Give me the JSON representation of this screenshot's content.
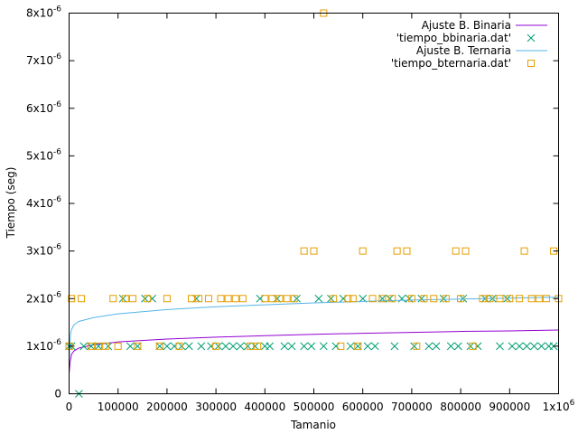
{
  "chart_data": {
    "type": "scatter",
    "xlabel": "Tamanio",
    "ylabel": "Tiempo (seg)",
    "xlim": [
      0,
      1000000
    ],
    "ylim": [
      0,
      8e-06
    ],
    "grid": false,
    "legend_position": "top-right",
    "x_ticks": [
      {
        "value": 0,
        "label": "0"
      },
      {
        "value": 100000,
        "label": "100000"
      },
      {
        "value": 200000,
        "label": "200000"
      },
      {
        "value": 300000,
        "label": "300000"
      },
      {
        "value": 400000,
        "label": "400000"
      },
      {
        "value": 500000,
        "label": "500000"
      },
      {
        "value": 600000,
        "label": "600000"
      },
      {
        "value": 700000,
        "label": "700000"
      },
      {
        "value": 800000,
        "label": "800000"
      },
      {
        "value": 900000,
        "label": "900000"
      },
      {
        "value": 1000000,
        "label": "1x10",
        "exp": "6"
      }
    ],
    "y_ticks": [
      {
        "value": 0,
        "label": "0"
      },
      {
        "value": 1e-06,
        "label": "1x10",
        "exp": "-6"
      },
      {
        "value": 2e-06,
        "label": "2x10",
        "exp": "-6"
      },
      {
        "value": 3e-06,
        "label": "3x10",
        "exp": "-6"
      },
      {
        "value": 4e-06,
        "label": "4x10",
        "exp": "-6"
      },
      {
        "value": 5e-06,
        "label": "5x10",
        "exp": "-6"
      },
      {
        "value": 6e-06,
        "label": "6x10",
        "exp": "-6"
      },
      {
        "value": 7e-06,
        "label": "7x10",
        "exp": "-6"
      },
      {
        "value": 8e-06,
        "label": "8x10",
        "exp": "-6"
      }
    ],
    "series": [
      {
        "name": "Ajuste B. Binaria",
        "kind": "line",
        "color": "#9400d3",
        "x": [
          0,
          2000,
          5000,
          10000,
          20000,
          50000,
          100000,
          200000,
          300000,
          400000,
          500000,
          600000,
          700000,
          800000,
          900000,
          1000000
        ],
        "y": [
          4.2e-07,
          6.6e-07,
          8.3e-07,
          9e-07,
          9.6e-07,
          1.03e-06,
          1.09e-06,
          1.15e-06,
          1.19e-06,
          1.22e-06,
          1.25e-06,
          1.27e-06,
          1.29e-06,
          1.31e-06,
          1.32e-06,
          1.34e-06
        ]
      },
      {
        "name": "'tiempo_bbinaria.dat'",
        "kind": "points",
        "marker": "x",
        "color": "#009e73",
        "x": [
          0,
          5000,
          20000,
          30000,
          45000,
          60000,
          80000,
          110000,
          125000,
          140000,
          155000,
          170000,
          185000,
          200000,
          215000,
          230000,
          245000,
          260000,
          270000,
          290000,
          305000,
          320000,
          335000,
          350000,
          365000,
          380000,
          390000,
          400000,
          410000,
          425000,
          440000,
          455000,
          465000,
          480000,
          495000,
          510000,
          520000,
          535000,
          545000,
          560000,
          575000,
          590000,
          600000,
          610000,
          625000,
          640000,
          655000,
          665000,
          680000,
          695000,
          705000,
          720000,
          735000,
          750000,
          765000,
          780000,
          795000,
          805000,
          820000,
          835000,
          850000,
          865000,
          880000,
          895000,
          905000,
          920000,
          935000,
          950000,
          965000,
          980000,
          990000
        ],
        "y": [
          1e-06,
          1e-06,
          0,
          1e-06,
          1e-06,
          1e-06,
          1e-06,
          2e-06,
          1e-06,
          1e-06,
          2e-06,
          2e-06,
          1e-06,
          1e-06,
          1e-06,
          1e-06,
          1e-06,
          2e-06,
          1e-06,
          1e-06,
          1e-06,
          1e-06,
          1e-06,
          1e-06,
          1e-06,
          1e-06,
          2e-06,
          1e-06,
          1e-06,
          2e-06,
          1e-06,
          1e-06,
          2e-06,
          1e-06,
          1e-06,
          2e-06,
          1e-06,
          2e-06,
          1e-06,
          2e-06,
          1e-06,
          1e-06,
          2e-06,
          1e-06,
          1e-06,
          2e-06,
          2e-06,
          1e-06,
          2e-06,
          2e-06,
          1e-06,
          2e-06,
          1e-06,
          1e-06,
          2e-06,
          1e-06,
          1e-06,
          2e-06,
          1e-06,
          1e-06,
          2e-06,
          2e-06,
          1e-06,
          2e-06,
          1e-06,
          1e-06,
          1e-06,
          1e-06,
          1e-06,
          1e-06,
          1e-06
        ]
      },
      {
        "name": "Ajuste B. Ternaria",
        "kind": "line",
        "color": "#56b4e9",
        "x": [
          0,
          1000,
          3000,
          5000,
          10000,
          20000,
          50000,
          100000,
          200000,
          300000,
          400000,
          500000,
          600000,
          700000,
          800000,
          900000,
          1000000
        ],
        "y": [
          5.5e-07,
          9.5e-07,
          1.25e-06,
          1.35e-06,
          1.45e-06,
          1.52e-06,
          1.6e-06,
          1.68e-06,
          1.77e-06,
          1.83e-06,
          1.87e-06,
          1.91e-06,
          1.94e-06,
          1.97e-06,
          1.99e-06,
          2.01e-06,
          2.03e-06
        ]
      },
      {
        "name": "'tiempo_bternaria.dat'",
        "kind": "points",
        "marker": "square",
        "color": "#e69f00",
        "x": [
          0,
          5000,
          25000,
          45000,
          60000,
          75000,
          90000,
          100000,
          115000,
          130000,
          140000,
          160000,
          185000,
          200000,
          225000,
          250000,
          265000,
          285000,
          300000,
          310000,
          325000,
          340000,
          355000,
          370000,
          385000,
          400000,
          415000,
          430000,
          445000,
          460000,
          480000,
          500000,
          520000,
          540000,
          555000,
          570000,
          580000,
          590000,
          600000,
          620000,
          640000,
          660000,
          670000,
          690000,
          700000,
          710000,
          725000,
          745000,
          770000,
          790000,
          800000,
          810000,
          825000,
          845000,
          860000,
          880000,
          900000,
          920000,
          930000,
          945000,
          960000,
          975000,
          990000,
          1000000
        ],
        "y": [
          1e-06,
          2e-06,
          2e-06,
          1e-06,
          1e-06,
          1e-06,
          2e-06,
          1e-06,
          2e-06,
          2e-06,
          1e-06,
          2e-06,
          1e-06,
          2e-06,
          1e-06,
          2e-06,
          2e-06,
          2e-06,
          1e-06,
          2e-06,
          2e-06,
          2e-06,
          2e-06,
          1e-06,
          1e-06,
          2e-06,
          2e-06,
          2e-06,
          2e-06,
          2e-06,
          3e-06,
          3e-06,
          8e-06,
          2e-06,
          1e-06,
          2e-06,
          2e-06,
          1e-06,
          3e-06,
          2e-06,
          2e-06,
          2e-06,
          3e-06,
          3e-06,
          2e-06,
          1e-06,
          2e-06,
          2e-06,
          2e-06,
          3e-06,
          2e-06,
          3e-06,
          1e-06,
          2e-06,
          2e-06,
          2e-06,
          2e-06,
          2e-06,
          3e-06,
          2e-06,
          2e-06,
          2e-06,
          3e-06,
          2e-06
        ]
      }
    ]
  }
}
